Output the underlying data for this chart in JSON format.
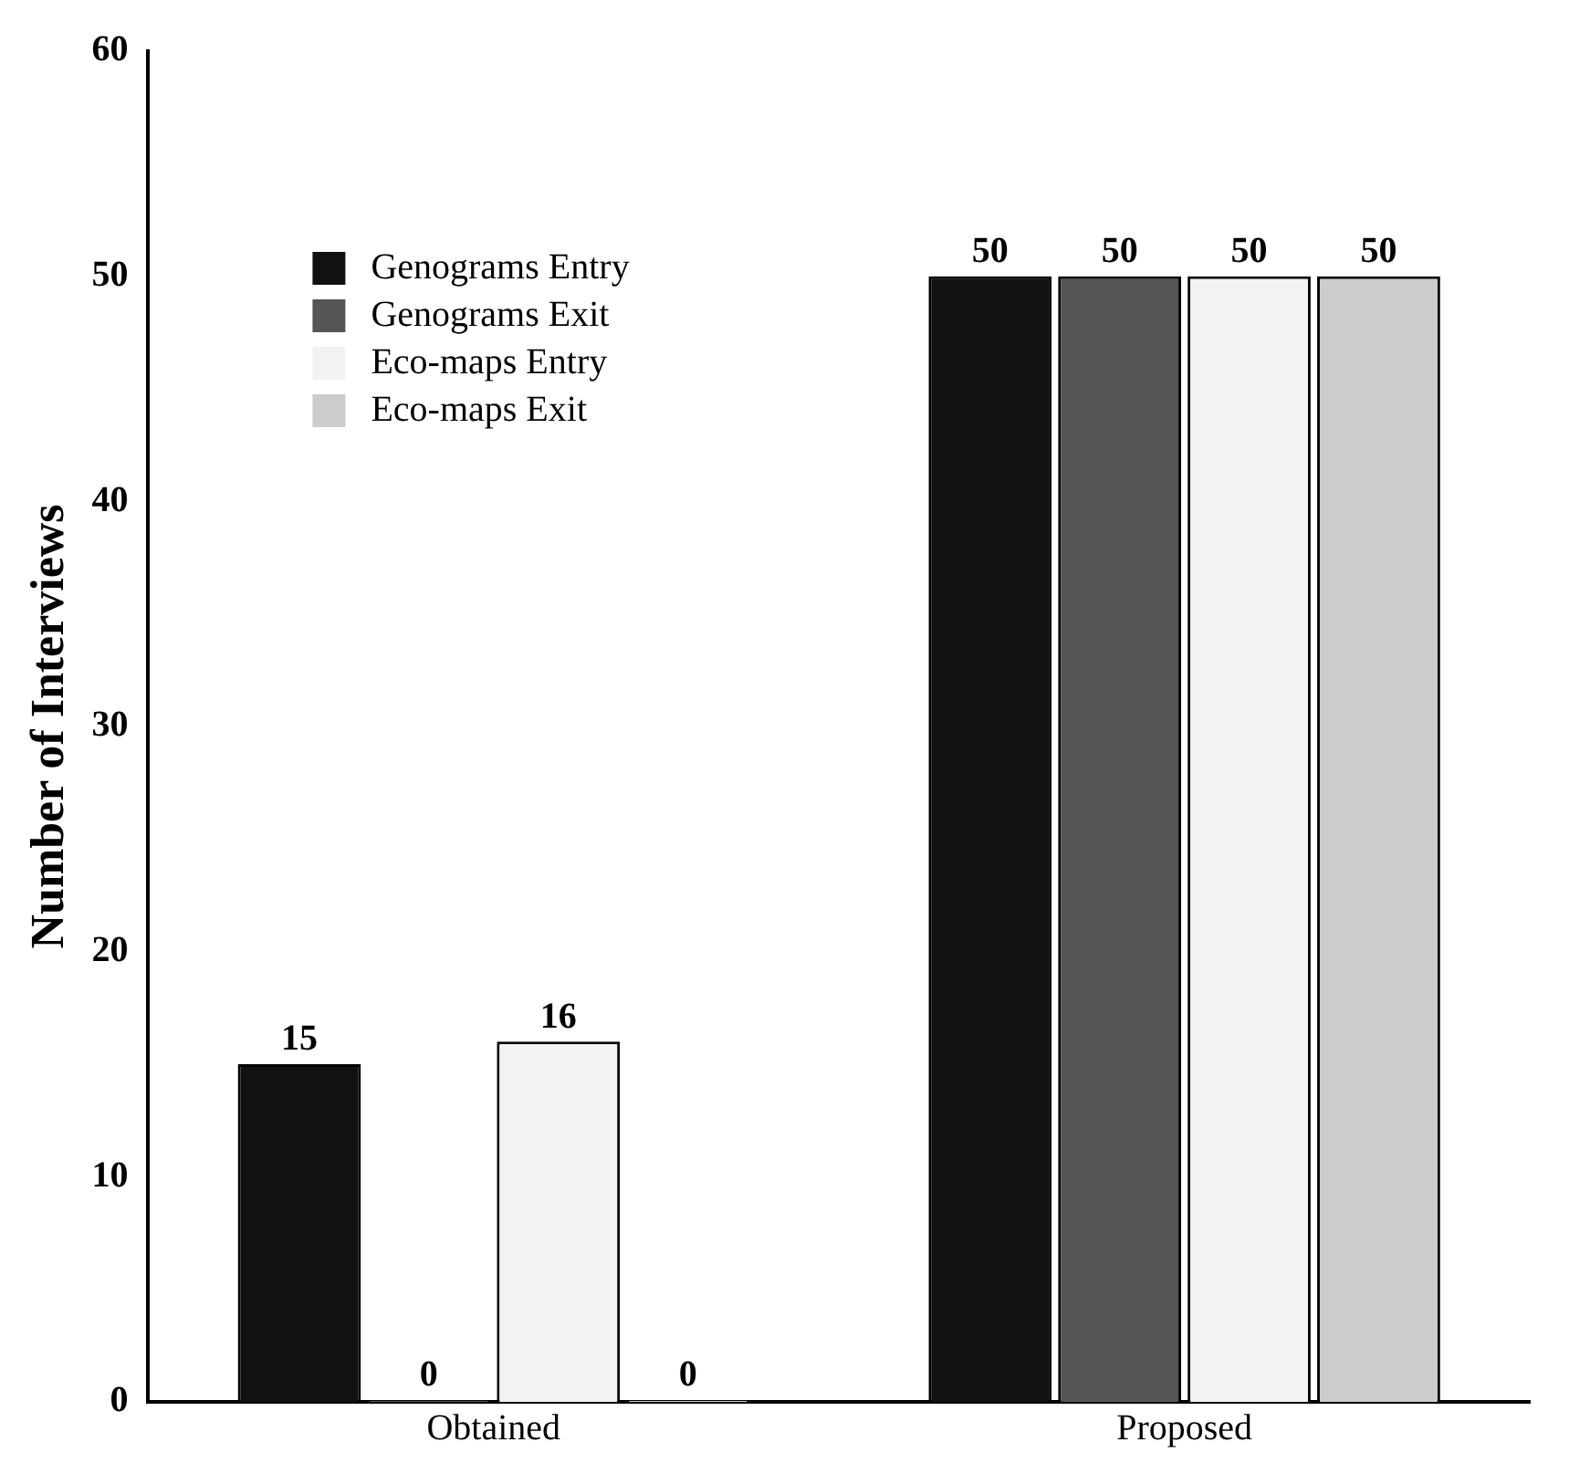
{
  "chart_data": {
    "type": "bar",
    "ylabel": "Number of Interviews",
    "categories": [
      "Obtained",
      "Proposed"
    ],
    "series": [
      {
        "name": "Genograms Entry",
        "color": "#111111",
        "values": [
          15,
          50
        ]
      },
      {
        "name": "Genograms Exit",
        "color": "#555555",
        "values": [
          0,
          50
        ]
      },
      {
        "name": "Eco-maps Entry",
        "color": "#f2f2f2",
        "values": [
          16,
          50
        ]
      },
      {
        "name": "Eco-maps Exit",
        "color": "#cccccc",
        "values": [
          0,
          50
        ]
      }
    ],
    "ylim": [
      0,
      60
    ],
    "yticks": [
      0,
      10,
      20,
      30,
      40,
      50,
      60
    ],
    "grid": false,
    "legend": "top left",
    "data_labels": true
  }
}
